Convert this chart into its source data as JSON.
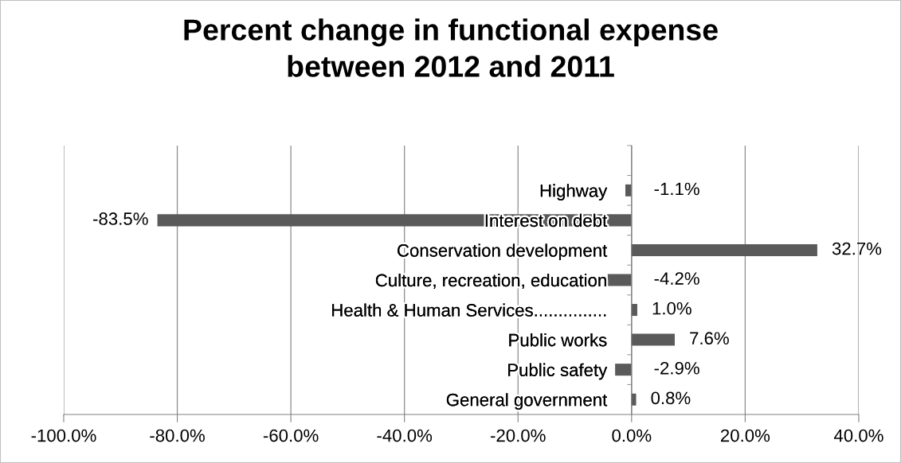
{
  "chart_data": {
    "type": "bar",
    "orientation": "horizontal",
    "title": "Percent change in functional expense\nbetween 2012 and 2011",
    "categories": [
      null,
      "Highway",
      "Interest on debt",
      "Conservation development",
      "Culture, recreation, education",
      "Health & Human Services...............",
      "Public works",
      "Public safety",
      "General government"
    ],
    "values": [
      null,
      -1.1,
      -83.5,
      32.7,
      -4.2,
      1.0,
      7.6,
      -2.9,
      0.8
    ],
    "value_labels": [
      null,
      "-1.1%",
      "-83.5%",
      "32.7%",
      "-4.2%",
      "1.0%",
      "7.6%",
      "-2.9%",
      "0.8%"
    ],
    "color": "#5a5a5a",
    "xlim": [
      -100,
      40
    ],
    "xticks": [
      {
        "value": -100,
        "label": "-100.0%"
      },
      {
        "value": -80,
        "label": "-80.0%"
      },
      {
        "value": -60,
        "label": "-60.0%"
      },
      {
        "value": -40,
        "label": "-40.0%"
      },
      {
        "value": -20,
        "label": "-20.0%"
      },
      {
        "value": 0,
        "label": "0.0%"
      },
      {
        "value": 20,
        "label": "20.0%"
      },
      {
        "value": 40,
        "label": "40.0%"
      }
    ],
    "grid": "x"
  }
}
